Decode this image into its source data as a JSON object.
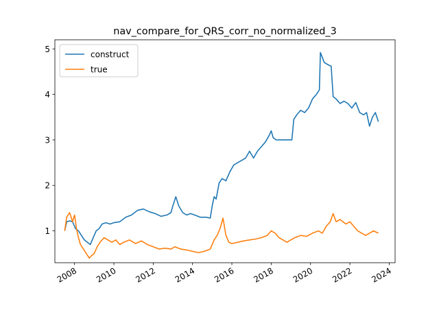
{
  "chart_data": {
    "type": "line",
    "title": "nav_compare_for_QRS_corr_no_normalized_3",
    "xlabel": "",
    "ylabel": "",
    "xlim": [
      2007.0,
      2024.3
    ],
    "ylim": [
      0.3,
      5.2
    ],
    "xticks": [
      2008,
      2010,
      2012,
      2014,
      2016,
      2018,
      2020,
      2022,
      2024
    ],
    "xtick_labels": [
      "2008",
      "2010",
      "2012",
      "2014",
      "2016",
      "2018",
      "2020",
      "2022",
      "2024"
    ],
    "yticks": [
      1,
      2,
      3,
      4,
      5
    ],
    "ytick_labels": [
      "1",
      "2",
      "3",
      "4",
      "5"
    ],
    "grid": false,
    "legend_position": "top-left",
    "series": [
      {
        "name": "construct",
        "color": "#1f77b4",
        "x": [
          2007.5,
          2007.6,
          2007.75,
          2007.9,
          2008.05,
          2008.2,
          2008.35,
          2008.5,
          2008.65,
          2008.8,
          2008.95,
          2009.1,
          2009.25,
          2009.4,
          2009.6,
          2009.8,
          2010.0,
          2010.3,
          2010.6,
          2010.9,
          2011.2,
          2011.5,
          2011.8,
          2012.1,
          2012.4,
          2012.7,
          2012.9,
          2013.0,
          2013.15,
          2013.3,
          2013.5,
          2013.7,
          2013.9,
          2014.1,
          2014.4,
          2014.7,
          2014.9,
          2015.0,
          2015.1,
          2015.2,
          2015.35,
          2015.5,
          2015.7,
          2015.9,
          2016.1,
          2016.3,
          2016.5,
          2016.7,
          2016.9,
          2017.1,
          2017.3,
          2017.5,
          2017.7,
          2017.9,
          2018.0,
          2018.1,
          2018.25,
          2018.5,
          2018.8,
          2019.05,
          2019.15,
          2019.3,
          2019.5,
          2019.7,
          2019.9,
          2020.1,
          2020.3,
          2020.45,
          2020.5,
          2020.7,
          2020.9,
          2021.05,
          2021.15,
          2021.3,
          2021.5,
          2021.7,
          2021.9,
          2022.1,
          2022.3,
          2022.5,
          2022.7,
          2022.85,
          2023.0,
          2023.15,
          2023.3,
          2023.45
        ],
        "values": [
          1.0,
          1.2,
          1.22,
          1.2,
          1.05,
          1.0,
          0.9,
          0.8,
          0.75,
          0.7,
          0.85,
          1.0,
          1.05,
          1.15,
          1.18,
          1.15,
          1.18,
          1.2,
          1.3,
          1.35,
          1.45,
          1.48,
          1.42,
          1.38,
          1.32,
          1.35,
          1.4,
          1.55,
          1.75,
          1.55,
          1.4,
          1.35,
          1.38,
          1.35,
          1.3,
          1.3,
          1.28,
          1.55,
          1.75,
          1.7,
          2.05,
          2.15,
          2.1,
          2.3,
          2.45,
          2.5,
          2.55,
          2.6,
          2.75,
          2.6,
          2.75,
          2.85,
          2.95,
          3.1,
          3.2,
          3.05,
          3.0,
          3.0,
          3.0,
          3.0,
          3.45,
          3.55,
          3.65,
          3.6,
          3.7,
          3.9,
          4.0,
          4.1,
          4.92,
          4.7,
          4.65,
          4.62,
          3.95,
          3.9,
          3.8,
          3.85,
          3.8,
          3.7,
          3.82,
          3.6,
          3.55,
          3.6,
          3.3,
          3.5,
          3.6,
          3.4
        ]
      },
      {
        "name": "true",
        "color": "#ff7f0e",
        "x": [
          2007.5,
          2007.6,
          2007.75,
          2007.9,
          2008.0,
          2008.1,
          2008.2,
          2008.3,
          2008.45,
          2008.6,
          2008.75,
          2008.85,
          2009.0,
          2009.15,
          2009.3,
          2009.5,
          2009.7,
          2009.9,
          2010.1,
          2010.3,
          2010.5,
          2010.8,
          2011.1,
          2011.4,
          2011.7,
          2012.0,
          2012.3,
          2012.6,
          2012.9,
          2013.1,
          2013.4,
          2013.7,
          2014.0,
          2014.3,
          2014.6,
          2014.9,
          2015.1,
          2015.25,
          2015.4,
          2015.55,
          2015.7,
          2015.85,
          2016.0,
          2016.3,
          2016.6,
          2016.9,
          2017.2,
          2017.5,
          2017.8,
          2018.0,
          2018.2,
          2018.4,
          2018.6,
          2018.8,
          2019.0,
          2019.2,
          2019.5,
          2019.8,
          2020.1,
          2020.4,
          2020.6,
          2020.8,
          2021.0,
          2021.15,
          2021.3,
          2021.5,
          2021.8,
          2022.0,
          2022.2,
          2022.4,
          2022.6,
          2022.8,
          2023.0,
          2023.2,
          2023.45
        ],
        "values": [
          1.0,
          1.3,
          1.4,
          1.2,
          1.35,
          1.05,
          0.85,
          0.7,
          0.6,
          0.5,
          0.4,
          0.45,
          0.5,
          0.65,
          0.75,
          0.85,
          0.8,
          0.75,
          0.8,
          0.7,
          0.75,
          0.8,
          0.72,
          0.78,
          0.7,
          0.65,
          0.6,
          0.62,
          0.6,
          0.65,
          0.6,
          0.58,
          0.55,
          0.52,
          0.55,
          0.6,
          0.8,
          0.9,
          1.05,
          1.28,
          0.9,
          0.75,
          0.72,
          0.75,
          0.78,
          0.8,
          0.82,
          0.85,
          0.9,
          1.0,
          0.95,
          0.85,
          0.8,
          0.75,
          0.8,
          0.85,
          0.9,
          0.88,
          0.95,
          1.0,
          0.95,
          1.1,
          1.2,
          1.38,
          1.2,
          1.25,
          1.15,
          1.2,
          1.1,
          1.0,
          0.95,
          0.9,
          0.95,
          1.0,
          0.95
        ]
      }
    ]
  }
}
